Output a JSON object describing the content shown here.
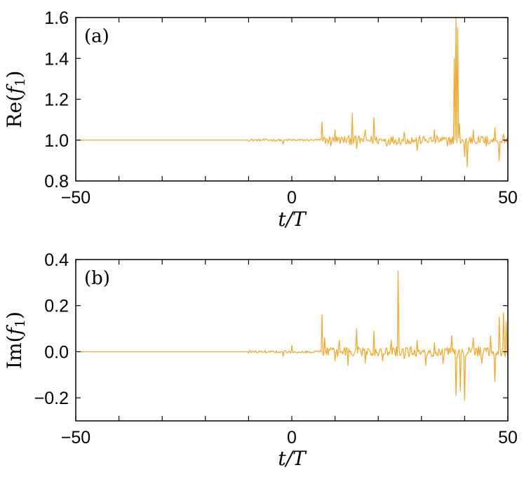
{
  "colors": {
    "series": "#f5a623",
    "axis": "#000000"
  },
  "chart_data": [
    {
      "type": "line",
      "panel_tag": "(a)",
      "xlabel_italic": "t/T",
      "ylabel": {
        "prefix": "Re(",
        "var": "f",
        "sub": "1",
        "suffix": ")"
      },
      "xlim": [
        -50,
        50
      ],
      "ylim": [
        0.8,
        1.6
      ],
      "xticks": [
        -50,
        0,
        50
      ],
      "xtick_labels": [
        "−50",
        "0",
        "50"
      ],
      "xticks_minor": [
        -40,
        -30,
        -20,
        -10,
        10,
        20,
        30,
        40
      ],
      "yticks": [
        0.8,
        1.0,
        1.2,
        1.4,
        1.6
      ],
      "ytick_labels": [
        "0.8",
        "1.0",
        "1.2",
        "1.4",
        "1.6"
      ],
      "grid": false,
      "series": [
        {
          "base": 1.0,
          "x_start": -50,
          "x_end": 50,
          "noise_start": -10,
          "noise_small_end": 7,
          "noise_small_amp": 0.006,
          "noise_large_amp": 0.022,
          "spikes": [
            [
              -2,
              0.98
            ],
            [
              7,
              1.09
            ],
            [
              9,
              0.97
            ],
            [
              10,
              1.05
            ],
            [
              14,
              1.13
            ],
            [
              15,
              0.96
            ],
            [
              17,
              1.05
            ],
            [
              19,
              1.11
            ],
            [
              22,
              0.97
            ],
            [
              26,
              1.04
            ],
            [
              29,
              0.95
            ],
            [
              33,
              1.05
            ],
            [
              36,
              0.97
            ],
            [
              37.5,
              1.4
            ],
            [
              38,
              1.61
            ],
            [
              38.3,
              1.55
            ],
            [
              38.8,
              1.08
            ],
            [
              40,
              0.92
            ],
            [
              40.5,
              0.87
            ],
            [
              42,
              1.05
            ],
            [
              45,
              0.97
            ],
            [
              47,
              1.06
            ],
            [
              48,
              0.9
            ],
            [
              49,
              1.03
            ],
            [
              50,
              0.95
            ]
          ]
        }
      ]
    },
    {
      "type": "line",
      "panel_tag": "(b)",
      "xlabel_italic": "t/T",
      "ylabel": {
        "prefix": "Im(",
        "var": "f",
        "sub": "1",
        "suffix": ")"
      },
      "xlim": [
        -50,
        50
      ],
      "ylim": [
        -0.3,
        0.4
      ],
      "xticks": [
        -50,
        0,
        50
      ],
      "xtick_labels": [
        "−50",
        "0",
        "50"
      ],
      "xticks_minor": [
        -40,
        -30,
        -20,
        -10,
        10,
        20,
        30,
        40
      ],
      "yticks": [
        -0.2,
        0.0,
        0.2,
        0.4
      ],
      "ytick_labels": [
        "−0.2",
        "0.0",
        "0.2",
        "0.4"
      ],
      "grid": false,
      "series": [
        {
          "base": 0.0,
          "x_start": -50,
          "x_end": 50,
          "noise_start": -10,
          "noise_small_end": 7,
          "noise_small_amp": 0.006,
          "noise_large_amp": 0.022,
          "spikes": [
            [
              -2,
              -0.02
            ],
            [
              0,
              0.03
            ],
            [
              7,
              0.16
            ],
            [
              7.5,
              0.06
            ],
            [
              10,
              -0.04
            ],
            [
              11,
              0.05
            ],
            [
              13,
              -0.06
            ],
            [
              15,
              0.1
            ],
            [
              17,
              -0.05
            ],
            [
              19,
              0.09
            ],
            [
              21,
              -0.04
            ],
            [
              23,
              0.05
            ],
            [
              24.5,
              0.35
            ],
            [
              26,
              -0.03
            ],
            [
              29,
              0.05
            ],
            [
              31,
              -0.06
            ],
            [
              33,
              0.04
            ],
            [
              35,
              -0.05
            ],
            [
              37,
              0.07
            ],
            [
              38,
              -0.19
            ],
            [
              39,
              -0.17
            ],
            [
              40,
              -0.21
            ],
            [
              42,
              0.06
            ],
            [
              44,
              -0.05
            ],
            [
              46,
              0.07
            ],
            [
              47,
              -0.13
            ],
            [
              48,
              0.15
            ],
            [
              49,
              0.17
            ],
            [
              49.5,
              0.13
            ],
            [
              50,
              -0.03
            ]
          ]
        }
      ]
    }
  ]
}
